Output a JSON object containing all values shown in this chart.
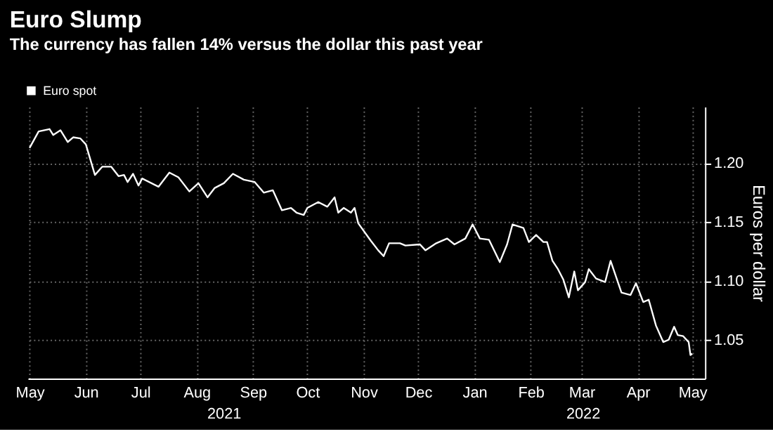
{
  "chart_data": {
    "type": "line",
    "title": "Euro Slump",
    "subtitle": "The currency has fallen 14% versus the dollar this past year",
    "ylabel": "Euros per dollar",
    "xlim": [
      "2021-05-14",
      "2022-05-22"
    ],
    "ylim": [
      1.017,
      1.248
    ],
    "xticks": [
      {
        "value": "2021-05-15",
        "label": "May"
      },
      {
        "value": "2021-06-15",
        "label": "Jun"
      },
      {
        "value": "2021-07-15",
        "label": "Jul"
      },
      {
        "value": "2021-08-15",
        "label": "Aug"
      },
      {
        "value": "2021-09-15",
        "label": "Sep"
      },
      {
        "value": "2021-10-15",
        "label": "Oct"
      },
      {
        "value": "2021-11-15",
        "label": "Nov"
      },
      {
        "value": "2021-12-15",
        "label": "Dec"
      },
      {
        "value": "2022-01-15",
        "label": "Jan"
      },
      {
        "value": "2022-02-15",
        "label": "Feb"
      },
      {
        "value": "2022-03-15",
        "label": "Mar"
      },
      {
        "value": "2022-04-15",
        "label": "Apr"
      },
      {
        "value": "2022-05-15",
        "label": "May"
      }
    ],
    "yticks": [
      1.05,
      {
        "value": 1.1,
        "label": "1.10"
      },
      1.15,
      {
        "value": 1.2,
        "label": "1.20"
      }
    ],
    "annotations": [
      "2021",
      "2022"
    ],
    "grid": true,
    "legend": "top left",
    "x": [
      "2021-05-15",
      "2021-05-20",
      "2021-05-26",
      "2021-05-28",
      "2021-06-01",
      "2021-06-05",
      "2021-06-08",
      "2021-06-12",
      "2021-06-15",
      "2021-06-20",
      "2021-06-24",
      "2021-06-29",
      "2021-07-03",
      "2021-07-06",
      "2021-07-08",
      "2021-07-11",
      "2021-07-14",
      "2021-07-16",
      "2021-07-25",
      "2021-07-31",
      "2021-08-05",
      "2021-08-11",
      "2021-08-16",
      "2021-08-21",
      "2021-08-25",
      "2021-08-30",
      "2021-09-04",
      "2021-09-10",
      "2021-09-16",
      "2021-09-21",
      "2021-09-26",
      "2021-10-01",
      "2021-10-06",
      "2021-10-09",
      "2021-10-13",
      "2021-10-15",
      "2021-10-21",
      "2021-10-26",
      "2021-10-30",
      "2021-11-01",
      "2021-11-04",
      "2021-11-08",
      "2021-11-10",
      "2021-11-12",
      "2021-11-19",
      "2021-11-23",
      "2021-11-26",
      "2021-11-29",
      "2021-12-05",
      "2021-12-08",
      "2021-12-16",
      "2021-12-19",
      "2021-12-25",
      "2021-12-31",
      "2022-01-04",
      "2022-01-10",
      "2022-01-14",
      "2022-01-18",
      "2022-01-23",
      "2022-01-29",
      "2022-02-02",
      "2022-02-05",
      "2022-02-11",
      "2022-02-14",
      "2022-02-18",
      "2022-02-22",
      "2022-02-24",
      "2022-02-27",
      "2022-03-02",
      "2022-03-05",
      "2022-03-08",
      "2022-03-11",
      "2022-03-13",
      "2022-03-17",
      "2022-03-19",
      "2022-03-23",
      "2022-03-28",
      "2022-03-31",
      "2022-04-06",
      "2022-04-11",
      "2022-04-14",
      "2022-04-18",
      "2022-04-21",
      "2022-04-25",
      "2022-04-29",
      "2022-05-02",
      "2022-05-05",
      "2022-05-07",
      "2022-05-10",
      "2022-05-13",
      "2022-05-14",
      "2022-05-15"
    ],
    "series": [
      {
        "name": "Euro spot",
        "color": "#ffffff",
        "values": [
          1.213,
          1.227,
          1.229,
          1.224,
          1.228,
          1.218,
          1.222,
          1.221,
          1.216,
          1.19,
          1.197,
          1.197,
          1.189,
          1.19,
          1.184,
          1.191,
          1.181,
          1.187,
          1.18,
          1.192,
          1.188,
          1.176,
          1.183,
          1.171,
          1.179,
          1.183,
          1.191,
          1.186,
          1.184,
          1.175,
          1.177,
          1.16,
          1.162,
          1.158,
          1.156,
          1.162,
          1.167,
          1.163,
          1.171,
          1.158,
          1.162,
          1.158,
          1.162,
          1.149,
          1.134,
          1.126,
          1.121,
          1.132,
          1.132,
          1.13,
          1.131,
          1.126,
          1.132,
          1.136,
          1.131,
          1.136,
          1.148,
          1.136,
          1.135,
          1.116,
          1.131,
          1.148,
          1.145,
          1.133,
          1.139,
          1.133,
          1.133,
          1.117,
          1.11,
          1.101,
          1.086,
          1.108,
          1.092,
          1.099,
          1.11,
          1.102,
          1.099,
          1.117,
          1.09,
          1.088,
          1.098,
          1.082,
          1.084,
          1.062,
          1.048,
          1.05,
          1.061,
          1.054,
          1.053,
          1.048,
          1.037,
          1.038
        ]
      }
    ]
  }
}
